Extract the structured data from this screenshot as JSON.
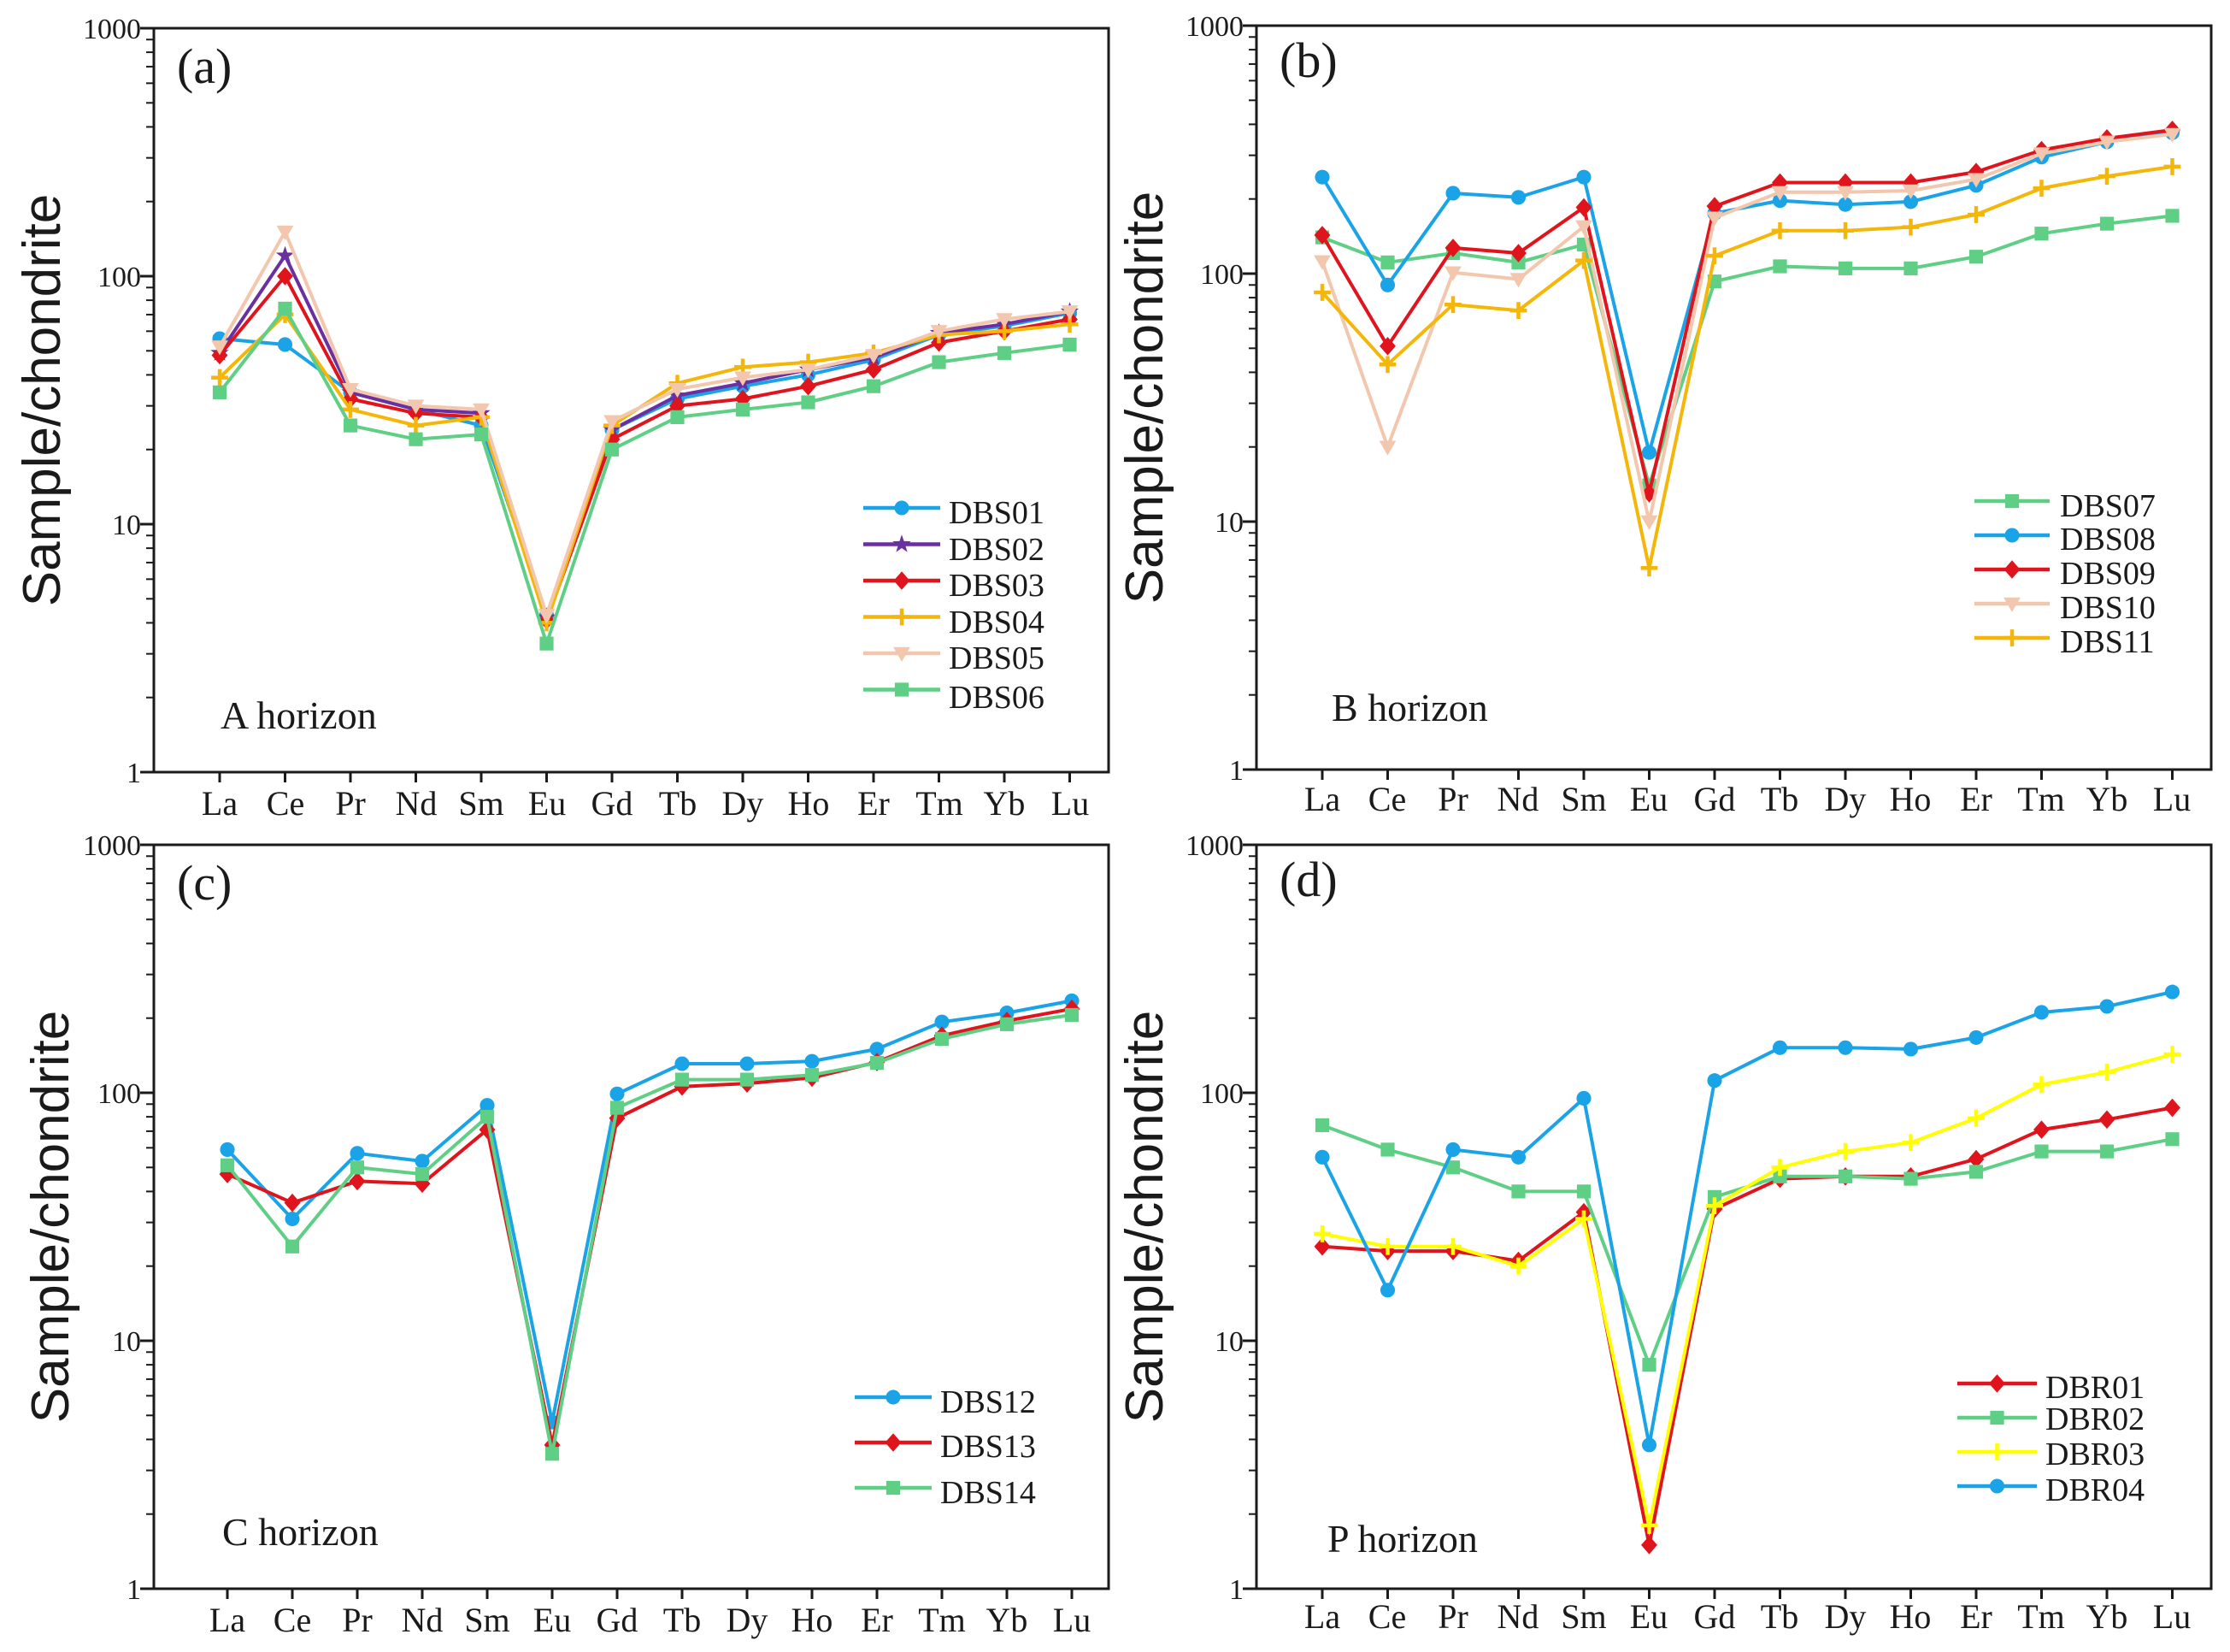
{
  "colors": {
    "blue": "#1aa3e6",
    "purple": "#6a2fa0",
    "red": "#e0141c",
    "orange": "#f5b60a",
    "peach": "#f2c7ad",
    "green": "#5fcf86",
    "yellow": "#ffff00",
    "axis": "#1a1a1a"
  },
  "chart_data": [
    {
      "id": "a",
      "type": "line",
      "title": "(a)",
      "annotation": "A horizon",
      "ylabel": "Sample/chondrite",
      "xlabel": "",
      "yscale": "log",
      "ylim": [
        1,
        1000
      ],
      "yticks": [
        "1",
        "10",
        "100",
        "1000"
      ],
      "categories": [
        "La",
        "Ce",
        "Pr",
        "Nd",
        "Sm",
        "Eu",
        "Gd",
        "Tb",
        "Dy",
        "Ho",
        "Er",
        "Tm",
        "Yb",
        "Lu"
      ],
      "legend_position": "lower-right",
      "series": [
        {
          "name": "DBS01",
          "color": "#1aa3e6",
          "marker": "circle",
          "values": [
            56,
            53,
            34,
            29,
            25,
            4.3,
            24,
            32,
            36,
            40,
            46,
            58,
            63,
            71
          ]
        },
        {
          "name": "DBS02",
          "color": "#6a2fa0",
          "marker": "star",
          "values": [
            49,
            121,
            34,
            29,
            28,
            4.2,
            24,
            33,
            37,
            42,
            47,
            59,
            64,
            72
          ]
        },
        {
          "name": "DBS03",
          "color": "#e0141c",
          "marker": "diamond",
          "values": [
            48,
            100,
            32,
            28,
            27,
            4.1,
            22,
            30,
            32,
            36,
            42,
            54,
            60,
            67
          ]
        },
        {
          "name": "DBS04",
          "color": "#f5b60a",
          "marker": "plus",
          "values": [
            39,
            70,
            29,
            25,
            27,
            4.0,
            25,
            37,
            43,
            45,
            49,
            58,
            60,
            64
          ]
        },
        {
          "name": "DBS05",
          "color": "#f2c7ad",
          "marker": "triangle-down",
          "values": [
            52,
            151,
            35,
            30,
            29,
            4.3,
            26,
            35,
            39,
            42,
            48,
            60,
            67,
            72
          ]
        },
        {
          "name": "DBS06",
          "color": "#5fcf86",
          "marker": "square",
          "values": [
            34,
            74,
            25,
            22,
            23,
            3.3,
            20,
            27,
            29,
            31,
            36,
            45,
            49,
            53
          ]
        }
      ]
    },
    {
      "id": "b",
      "type": "line",
      "title": "(b)",
      "annotation": "B horizon",
      "ylabel": "Sample/chondrite",
      "xlabel": "",
      "yscale": "log",
      "ylim": [
        1,
        1000
      ],
      "yticks": [
        "1",
        "10",
        "100",
        "1000"
      ],
      "categories": [
        "La",
        "Ce",
        "Pr",
        "Nd",
        "Sm",
        "Eu",
        "Gd",
        "Tb",
        "Dy",
        "Ho",
        "Er",
        "Tm",
        "Yb",
        "Lu"
      ],
      "legend_position": "lower-right",
      "series": [
        {
          "name": "DBS07",
          "color": "#5fcf86",
          "marker": "square",
          "values": [
            140,
            111,
            121,
            111,
            131,
            14,
            93,
            107,
            105,
            105,
            117,
            145,
            159,
            171
          ]
        },
        {
          "name": "DBS08",
          "color": "#1aa3e6",
          "marker": "circle",
          "values": [
            245,
            90,
            211,
            203,
            245,
            19,
            175,
            197,
            190,
            195,
            227,
            295,
            340,
            370
          ]
        },
        {
          "name": "DBS09",
          "color": "#e0141c",
          "marker": "diamond",
          "values": [
            143,
            51,
            127,
            121,
            185,
            13,
            187,
            233,
            233,
            233,
            257,
            315,
            351,
            380
          ]
        },
        {
          "name": "DBS10",
          "color": "#f2c7ad",
          "marker": "triangle-down",
          "values": [
            112,
            20,
            101,
            95,
            155,
            10,
            168,
            213,
            213,
            216,
            240,
            305,
            340,
            365
          ]
        },
        {
          "name": "DBS11",
          "color": "#f5b60a",
          "marker": "plus",
          "values": [
            84,
            43,
            75,
            71,
            113,
            6.5,
            118,
            149,
            149,
            154,
            173,
            221,
            247,
            270
          ]
        }
      ]
    },
    {
      "id": "c",
      "type": "line",
      "title": "(c)",
      "annotation": "C horizon",
      "ylabel": "Sample/chondrite",
      "xlabel": "",
      "yscale": "log",
      "ylim": [
        1,
        1000
      ],
      "yticks": [
        "1",
        "10",
        "100",
        "1000"
      ],
      "categories": [
        "La",
        "Ce",
        "Pr",
        "Nd",
        "Sm",
        "Eu",
        "Gd",
        "Tb",
        "Dy",
        "Ho",
        "Er",
        "Tm",
        "Yb",
        "Lu"
      ],
      "legend_position": "lower-right",
      "series": [
        {
          "name": "DBS12",
          "color": "#1aa3e6",
          "marker": "circle",
          "values": [
            59,
            31,
            57,
            53,
            89,
            4.7,
            99,
            131,
            131,
            134,
            150,
            193,
            210,
            235
          ]
        },
        {
          "name": "DBS13",
          "color": "#e0141c",
          "marker": "diamond",
          "values": [
            47,
            36,
            44,
            43,
            71,
            3.8,
            79,
            106,
            109,
            115,
            133,
            170,
            195,
            218
          ]
        },
        {
          "name": "DBS14",
          "color": "#5fcf86",
          "marker": "square",
          "values": [
            51,
            24,
            50,
            47,
            80,
            3.5,
            87,
            113,
            113,
            118,
            132,
            165,
            189,
            206
          ]
        }
      ]
    },
    {
      "id": "d",
      "type": "line",
      "title": "(d)",
      "annotation": "P horizon",
      "ylabel": "Sample/chondrite",
      "xlabel": "",
      "yscale": "log",
      "ylim": [
        1,
        1000
      ],
      "yticks": [
        "1",
        "10",
        "100",
        "1000"
      ],
      "categories": [
        "La",
        "Ce",
        "Pr",
        "Nd",
        "Sm",
        "Eu",
        "Gd",
        "Tb",
        "Dy",
        "Ho",
        "Er",
        "Tm",
        "Yb",
        "Lu"
      ],
      "legend_position": "lower-right",
      "series": [
        {
          "name": "DBR01",
          "color": "#e0141c",
          "marker": "diamond",
          "values": [
            24,
            23,
            23,
            21,
            33,
            1.5,
            34,
            45,
            46,
            46,
            54,
            71,
            78,
            87
          ]
        },
        {
          "name": "DBR02",
          "color": "#5fcf86",
          "marker": "square",
          "values": [
            74,
            59,
            50,
            40,
            40,
            8,
            38,
            46,
            46,
            45,
            48,
            58,
            58,
            65
          ]
        },
        {
          "name": "DBR03",
          "color": "#ffff00",
          "marker": "plus",
          "values": [
            27,
            24,
            24,
            20,
            31,
            1.8,
            35,
            50,
            58,
            63,
            79,
            108,
            121,
            143
          ]
        },
        {
          "name": "DBR04",
          "color": "#1aa3e6",
          "marker": "circle",
          "values": [
            55,
            16,
            59,
            55,
            95,
            3.8,
            112,
            152,
            152,
            150,
            167,
            211,
            223,
            255
          ]
        }
      ]
    }
  ]
}
